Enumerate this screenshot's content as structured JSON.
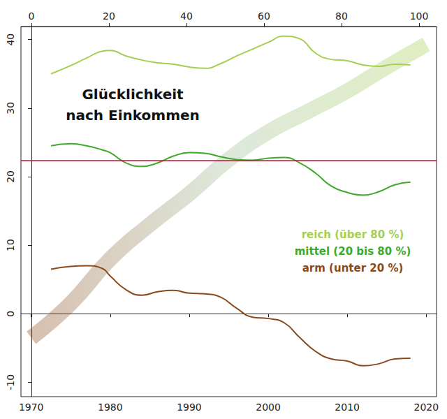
{
  "chart_data": {
    "type": "line",
    "title": "Glücklichkeit\nnach Einkommen",
    "x": [
      1972.5,
      1975,
      1977,
      1979,
      1980,
      1982,
      1984,
      1986,
      1988,
      1990,
      1992,
      1994,
      1996,
      1998,
      2000,
      2002,
      2004,
      2006,
      2008,
      2010,
      2012,
      2014,
      2016,
      2018
    ],
    "xlim": [
      1968.7,
      2021.3
    ],
    "xticks": [
      1970,
      1980,
      1990,
      2000,
      2010,
      2020
    ],
    "x2lim": [
      -2.7,
      104.5
    ],
    "x2ticks": [
      0,
      20,
      40,
      60,
      80,
      100
    ],
    "ylim": [
      -12.1,
      41.9
    ],
    "yticks": [
      -10,
      0,
      10,
      20,
      30,
      40
    ],
    "grid": false,
    "legend": "right",
    "series": [
      {
        "name": "reich (über 80 %)",
        "color": "#a6cf52",
        "values": [
          35.0,
          36.2,
          37.3,
          38.3,
          38.4,
          37.6,
          37.0,
          36.6,
          36.4,
          36.0,
          35.8,
          36.5,
          37.6,
          38.6,
          39.6,
          40.5,
          40.1,
          38.0,
          37.1,
          36.9,
          36.3,
          36.1,
          36.4,
          36.3
        ]
      },
      {
        "name": "mittel (20 bis 80 %)",
        "color": "#3daa2a",
        "values": [
          24.5,
          24.8,
          24.5,
          23.9,
          23.5,
          22.0,
          21.5,
          22.0,
          23.0,
          23.5,
          23.4,
          22.9,
          22.5,
          22.4,
          22.7,
          22.8,
          22.0,
          20.5,
          18.6,
          17.7,
          17.3,
          17.8,
          18.8,
          19.2
        ]
      },
      {
        "name": "arm (unter 20 %)",
        "color": "#8b4a1c",
        "values": [
          6.5,
          6.9,
          7.0,
          6.6,
          5.5,
          3.5,
          2.7,
          3.2,
          3.4,
          3.0,
          2.9,
          2.4,
          0.8,
          -0.5,
          -0.7,
          -1.3,
          -3.5,
          -5.5,
          -6.6,
          -6.9,
          -7.6,
          -7.3,
          -6.6,
          -6.5
        ]
      }
    ],
    "band": {
      "x": [
        1970,
        1975,
        1980,
        1985,
        1990,
        1995,
        2000,
        2005,
        2010,
        2015,
        2020
      ],
      "values": [
        -3.5,
        1.5,
        8.0,
        13.0,
        17.5,
        22.5,
        26.5,
        29.5,
        32.5,
        36.0,
        39.3
      ],
      "color": "#9fbf98"
    },
    "reference_line": {
      "value": 22.4,
      "color": "#c8102e"
    }
  }
}
